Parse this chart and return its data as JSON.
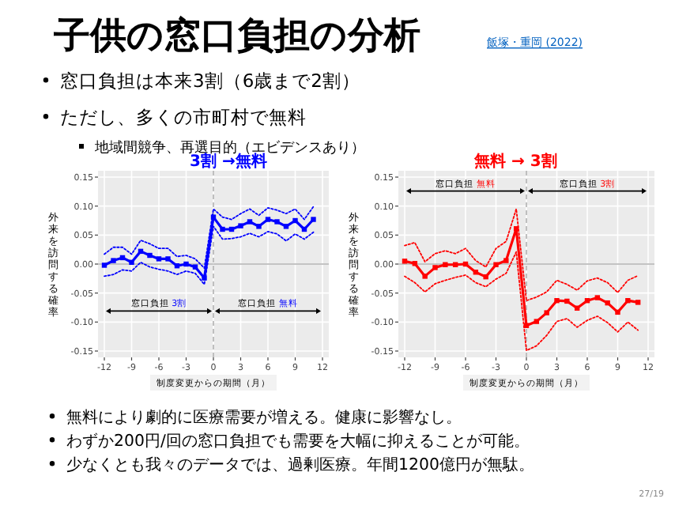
{
  "chart_data": [
    {
      "type": "other",
      "title": "子供の窓口負担の分析",
      "annotations": [
        "飯塚・重岡 (2022)",
        "窓口負担は本来3割（6歳まで2割）",
        "ただし、多くの市町村で無料",
        "地域間競争、再選目的（エビデンスあり）",
        "無料により劇的に医療需要が増える。健康に影響なし。",
        "わずか200円/回の窓口負担でも需要を大幅に抑えることが可能。",
        "少なくとも我々のデータでは、過剰医療。年間1200億円が無駄。",
        "27/19"
      ]
    },
    {
      "type": "line",
      "title": "3割 →無料",
      "xlabel": "制度変更からの期間（月）",
      "ylabel": "外来を訪問する確率",
      "x": [
        -12,
        -11,
        -10,
        -9,
        -8,
        -7,
        -6,
        -5,
        -4,
        -3,
        -2,
        -1,
        0,
        1,
        2,
        3,
        4,
        5,
        6,
        7,
        8,
        9,
        10,
        11
      ],
      "xlim": [
        -12,
        12
      ],
      "xticks": [
        -12,
        -9,
        -6,
        -3,
        0,
        3,
        6,
        9,
        12
      ],
      "ylim": [
        -0.15,
        0.15
      ],
      "yticks": [
        -0.15,
        {
          "value": -0.1,
          "label": "-0.10"
        },
        -0.05,
        {
          "value": 0,
          "label": "0.00"
        },
        0.05,
        {
          "value": 0.1,
          "label": "0.10"
        },
        0.15
      ],
      "grid": true,
      "ref_lines": [
        {
          "axis": "y",
          "value": 0,
          "color": "#b0b0b0"
        },
        {
          "axis": "x",
          "value": 0,
          "line_style": "dashed",
          "color": "#b0b0b0"
        }
      ],
      "annotations": [
        "窓口負担 3割",
        "窓口負担 無料"
      ],
      "series": [
        {
          "color": "#0000ff",
          "marker": "square",
          "values": [
            -0.002,
            0.006,
            0.011,
            0.003,
            0.022,
            0.015,
            0.009,
            0.009,
            -0.003,
            0.0,
            -0.005,
            -0.024,
            0.081,
            0.06,
            0.06,
            0.066,
            0.073,
            0.065,
            0.077,
            0.073,
            0.065,
            0.075,
            0.06,
            0.077
          ]
        },
        {
          "color": "#0000ff",
          "marker": "none",
          "line_style": "dotted",
          "values": [
            0.017,
            0.029,
            0.029,
            0.017,
            0.041,
            0.035,
            0.027,
            0.027,
            0.013,
            0.015,
            0.009,
            -0.007,
            0.095,
            0.081,
            0.077,
            0.087,
            0.095,
            0.084,
            0.097,
            0.093,
            0.087,
            0.095,
            0.077,
            0.099
          ]
        },
        {
          "color": "#0000ff",
          "marker": "none",
          "line_style": "dotted",
          "values": [
            -0.021,
            -0.018,
            -0.01,
            -0.012,
            0.003,
            -0.005,
            -0.009,
            -0.012,
            -0.018,
            -0.012,
            -0.016,
            -0.035,
            0.065,
            0.043,
            0.044,
            0.047,
            0.053,
            0.047,
            0.056,
            0.052,
            0.04,
            0.052,
            0.043,
            0.055
          ]
        }
      ]
    },
    {
      "type": "line",
      "title": "無料 → 3割",
      "xlabel": "制度変更からの期間（月）",
      "ylabel": "外来を訪問する確率",
      "x": [
        -12,
        -11,
        -10,
        -9,
        -8,
        -7,
        -6,
        -5,
        -4,
        -3,
        -2,
        -1,
        0,
        1,
        2,
        3,
        4,
        5,
        6,
        7,
        8,
        9,
        10,
        11
      ],
      "xlim": [
        -12,
        12
      ],
      "xticks": [
        -12,
        -9,
        -6,
        -3,
        0,
        3,
        6,
        9,
        12
      ],
      "ylim": [
        -0.15,
        0.15
      ],
      "yticks": [
        -0.15,
        {
          "value": -0.1,
          "label": "-0.10"
        },
        -0.05,
        {
          "value": 0,
          "label": "0.00"
        },
        0.05,
        {
          "value": 0.1,
          "label": "0.10"
        },
        0.15
      ],
      "grid": true,
      "ref_lines": [
        {
          "axis": "y",
          "value": 0,
          "color": "#b0b0b0"
        },
        {
          "axis": "x",
          "value": 0,
          "line_style": "dashed",
          "color": "#b0b0b0"
        }
      ],
      "annotations": [
        "窓口負担 無料",
        "窓口負担 3割"
      ],
      "series": [
        {
          "color": "#ff0000",
          "marker": "square",
          "values": [
            0.005,
            0.001,
            -0.021,
            -0.006,
            -0.001,
            -0.001,
            0.0,
            -0.014,
            -0.022,
            -0.001,
            0.006,
            0.061,
            -0.106,
            -0.099,
            -0.084,
            -0.063,
            -0.064,
            -0.076,
            -0.063,
            -0.058,
            -0.067,
            -0.083,
            -0.063,
            -0.066
          ]
        },
        {
          "color": "#ff0000",
          "marker": "none",
          "line_style": "dotted",
          "values": [
            0.032,
            0.037,
            0.004,
            0.018,
            0.023,
            0.018,
            0.027,
            0.006,
            -0.005,
            0.027,
            0.039,
            0.095,
            -0.063,
            -0.057,
            -0.048,
            -0.028,
            -0.035,
            -0.045,
            -0.029,
            -0.024,
            -0.032,
            -0.049,
            -0.028,
            -0.02
          ]
        },
        {
          "color": "#ff0000",
          "marker": "none",
          "line_style": "dotted",
          "values": [
            -0.021,
            -0.032,
            -0.048,
            -0.034,
            -0.028,
            -0.023,
            -0.019,
            -0.032,
            -0.039,
            -0.026,
            -0.016,
            0.021,
            -0.149,
            -0.141,
            -0.123,
            -0.099,
            -0.094,
            -0.109,
            -0.097,
            -0.09,
            -0.101,
            -0.117,
            -0.1,
            -0.114
          ]
        }
      ]
    }
  ]
}
